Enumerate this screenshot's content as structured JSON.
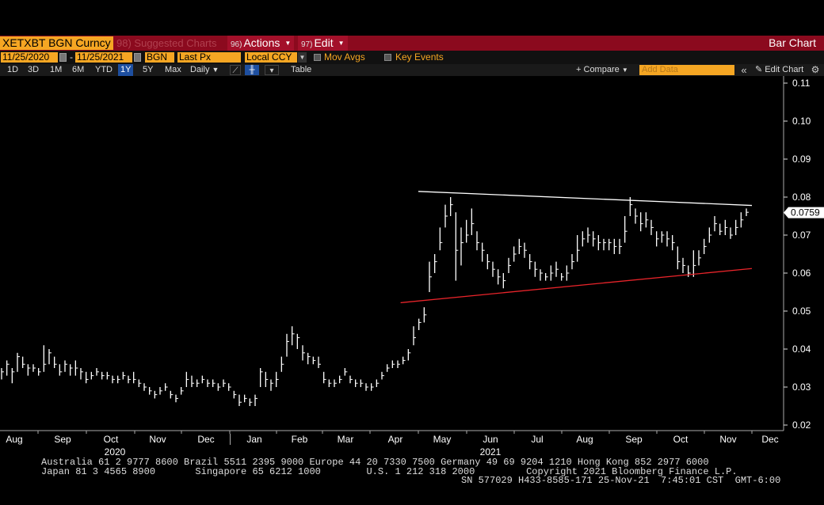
{
  "header": {
    "ticker": "XETXBT BGN Curncy",
    "suggested_num": "98)",
    "suggested": "Suggested Charts",
    "actions_num": "96)",
    "actions": "Actions",
    "edit_num": "97)",
    "edit": "Edit",
    "title": "Bar Chart"
  },
  "controls": {
    "start_date": "11/25/2020",
    "end_date": "11/25/2021",
    "dash": "-",
    "source": "BGN",
    "field": "Last Px",
    "currency": "Local CCY",
    "mov_avgs": "Mov Avgs",
    "key_events": "Key Events"
  },
  "toolbar": {
    "periods": [
      "1D",
      "3D",
      "1M",
      "6M",
      "YTD",
      "1Y",
      "5Y",
      "Max"
    ],
    "active_period": "1Y",
    "frequency": "Daily",
    "table": "Table",
    "compare": "Compare",
    "add_data_placeholder": "Add Data",
    "edit_chart": "Edit Chart"
  },
  "chart_data": {
    "type": "bar",
    "ylim": [
      0.02,
      0.11
    ],
    "yticks": [
      "0.11",
      "0.10",
      "0.09",
      "0.08",
      "0.07",
      "0.06",
      "0.05",
      "0.04",
      "0.03",
      "0.02"
    ],
    "last_price": "0.0759",
    "months": [
      "Aug",
      "Sep",
      "Oct",
      "Nov",
      "Dec",
      "Jan",
      "Feb",
      "Mar",
      "Apr",
      "May",
      "Jun",
      "Jul",
      "Aug",
      "Sep",
      "Oct",
      "Nov",
      "Dec"
    ],
    "years": [
      "2020",
      "2021"
    ],
    "series": [
      {
        "points": [
          [
            0.034,
            0.032,
            0.035
          ],
          [
            0.036,
            0.033,
            0.037
          ],
          [
            0.034,
            0.031,
            0.035
          ],
          [
            0.038,
            0.034,
            0.039
          ],
          [
            0.036,
            0.035,
            0.038
          ],
          [
            0.035,
            0.033,
            0.036
          ],
          [
            0.035,
            0.034,
            0.036
          ],
          [
            0.034,
            0.033,
            0.035
          ],
          [
            0.036,
            0.034,
            0.041
          ],
          [
            0.039,
            0.036,
            0.04
          ],
          [
            0.036,
            0.035,
            0.038
          ],
          [
            0.034,
            0.033,
            0.036
          ],
          [
            0.036,
            0.034,
            0.037
          ],
          [
            0.035,
            0.033,
            0.036
          ],
          [
            0.035,
            0.033,
            0.037
          ],
          [
            0.034,
            0.032,
            0.035
          ],
          [
            0.032,
            0.031,
            0.034
          ],
          [
            0.033,
            0.032,
            0.034
          ],
          [
            0.034,
            0.033,
            0.035
          ],
          [
            0.033,
            0.032,
            0.034
          ],
          [
            0.033,
            0.032,
            0.034
          ],
          [
            0.032,
            0.031,
            0.033
          ],
          [
            0.032,
            0.031,
            0.033
          ],
          [
            0.033,
            0.032,
            0.034
          ],
          [
            0.032,
            0.031,
            0.033
          ],
          [
            0.032,
            0.031,
            0.034
          ],
          [
            0.031,
            0.03,
            0.032
          ],
          [
            0.03,
            0.029,
            0.031
          ],
          [
            0.029,
            0.028,
            0.03
          ],
          [
            0.028,
            0.027,
            0.029
          ],
          [
            0.029,
            0.028,
            0.03
          ],
          [
            0.03,
            0.029,
            0.031
          ],
          [
            0.028,
            0.027,
            0.029
          ],
          [
            0.027,
            0.026,
            0.028
          ],
          [
            0.029,
            0.028,
            0.03
          ],
          [
            0.032,
            0.03,
            0.034
          ],
          [
            0.031,
            0.03,
            0.033
          ],
          [
            0.031,
            0.03,
            0.032
          ],
          [
            0.032,
            0.031,
            0.033
          ],
          [
            0.031,
            0.03,
            0.032
          ],
          [
            0.031,
            0.03,
            0.032
          ],
          [
            0.03,
            0.029,
            0.031
          ],
          [
            0.031,
            0.03,
            0.032
          ],
          [
            0.03,
            0.029,
            0.031
          ],
          [
            0.028,
            0.027,
            0.029
          ],
          [
            0.026,
            0.025,
            0.028
          ],
          [
            0.027,
            0.026,
            0.028
          ],
          [
            0.026,
            0.025,
            0.027
          ],
          [
            0.027,
            0.025,
            0.028
          ],
          [
            0.034,
            0.03,
            0.035
          ],
          [
            0.032,
            0.03,
            0.034
          ],
          [
            0.031,
            0.029,
            0.032
          ],
          [
            0.032,
            0.03,
            0.034
          ],
          [
            0.036,
            0.034,
            0.038
          ],
          [
            0.042,
            0.038,
            0.044
          ],
          [
            0.044,
            0.041,
            0.046
          ],
          [
            0.043,
            0.04,
            0.044
          ],
          [
            0.039,
            0.037,
            0.041
          ],
          [
            0.038,
            0.036,
            0.039
          ],
          [
            0.037,
            0.036,
            0.038
          ],
          [
            0.036,
            0.035,
            0.038
          ],
          [
            0.032,
            0.031,
            0.034
          ],
          [
            0.031,
            0.03,
            0.032
          ],
          [
            0.031,
            0.03,
            0.032
          ],
          [
            0.032,
            0.031,
            0.033
          ],
          [
            0.034,
            0.033,
            0.035
          ],
          [
            0.032,
            0.031,
            0.033
          ],
          [
            0.031,
            0.03,
            0.032
          ],
          [
            0.031,
            0.03,
            0.032
          ],
          [
            0.03,
            0.029,
            0.031
          ],
          [
            0.03,
            0.029,
            0.031
          ],
          [
            0.031,
            0.03,
            0.032
          ],
          [
            0.033,
            0.032,
            0.034
          ],
          [
            0.035,
            0.034,
            0.036
          ],
          [
            0.036,
            0.035,
            0.037
          ],
          [
            0.036,
            0.035,
            0.037
          ],
          [
            0.037,
            0.036,
            0.038
          ],
          [
            0.039,
            0.037,
            0.04
          ],
          [
            0.043,
            0.041,
            0.046
          ],
          [
            0.047,
            0.045,
            0.048
          ],
          [
            0.049,
            0.047,
            0.051
          ],
          [
            0.059,
            0.055,
            0.063
          ],
          [
            0.063,
            0.06,
            0.065
          ],
          [
            0.068,
            0.066,
            0.072
          ],
          [
            0.075,
            0.072,
            0.078
          ],
          [
            0.078,
            0.075,
            0.08
          ],
          [
            0.066,
            0.058,
            0.076
          ],
          [
            0.068,
            0.062,
            0.072
          ],
          [
            0.07,
            0.068,
            0.074
          ],
          [
            0.073,
            0.07,
            0.077
          ],
          [
            0.068,
            0.066,
            0.071
          ],
          [
            0.066,
            0.063,
            0.068
          ],
          [
            0.063,
            0.061,
            0.065
          ],
          [
            0.061,
            0.059,
            0.063
          ],
          [
            0.059,
            0.057,
            0.061
          ],
          [
            0.058,
            0.056,
            0.06
          ],
          [
            0.062,
            0.06,
            0.064
          ],
          [
            0.065,
            0.063,
            0.067
          ],
          [
            0.067,
            0.065,
            0.069
          ],
          [
            0.066,
            0.064,
            0.068
          ],
          [
            0.063,
            0.061,
            0.065
          ],
          [
            0.061,
            0.059,
            0.063
          ],
          [
            0.06,
            0.058,
            0.061
          ],
          [
            0.059,
            0.058,
            0.06
          ],
          [
            0.06,
            0.058,
            0.062
          ],
          [
            0.061,
            0.059,
            0.063
          ],
          [
            0.059,
            0.058,
            0.06
          ],
          [
            0.06,
            0.058,
            0.062
          ],
          [
            0.063,
            0.061,
            0.065
          ],
          [
            0.066,
            0.063,
            0.07
          ],
          [
            0.069,
            0.067,
            0.071
          ],
          [
            0.07,
            0.068,
            0.072
          ],
          [
            0.069,
            0.067,
            0.071
          ],
          [
            0.068,
            0.066,
            0.07
          ],
          [
            0.068,
            0.066,
            0.069
          ],
          [
            0.068,
            0.066,
            0.069
          ],
          [
            0.067,
            0.065,
            0.069
          ],
          [
            0.067,
            0.065,
            0.069
          ],
          [
            0.071,
            0.068,
            0.075
          ],
          [
            0.078,
            0.075,
            0.08
          ],
          [
            0.075,
            0.073,
            0.077
          ],
          [
            0.073,
            0.071,
            0.076
          ],
          [
            0.074,
            0.072,
            0.076
          ],
          [
            0.072,
            0.07,
            0.074
          ],
          [
            0.069,
            0.067,
            0.071
          ],
          [
            0.07,
            0.068,
            0.071
          ],
          [
            0.069,
            0.067,
            0.071
          ],
          [
            0.068,
            0.066,
            0.07
          ],
          [
            0.063,
            0.061,
            0.067
          ],
          [
            0.062,
            0.06,
            0.064
          ],
          [
            0.06,
            0.059,
            0.062
          ],
          [
            0.062,
            0.059,
            0.066
          ],
          [
            0.064,
            0.062,
            0.066
          ],
          [
            0.067,
            0.065,
            0.069
          ],
          [
            0.07,
            0.068,
            0.072
          ],
          [
            0.073,
            0.071,
            0.075
          ],
          [
            0.071,
            0.07,
            0.073
          ],
          [
            0.072,
            0.07,
            0.074
          ],
          [
            0.07,
            0.069,
            0.072
          ],
          [
            0.072,
            0.07,
            0.074
          ],
          [
            0.074,
            0.072,
            0.076
          ],
          [
            0.076,
            0.075,
            0.077
          ]
        ]
      }
    ],
    "trendlines": [
      {
        "color": "#ffffff",
        "from": [
          "2021-05-01",
          0.0815
        ],
        "to": [
          "2021-12-01",
          0.0778
        ]
      },
      {
        "color": "#e8242a",
        "from": [
          "2021-04-20",
          0.0522
        ],
        "to": [
          "2021-12-01",
          0.0612
        ]
      }
    ]
  },
  "footer": {
    "line1": "Australia 61 2 9777 8600 Brazil 5511 2395 9000 Europe 44 20 7330 7500 Germany 49 69 9204 1210 Hong Kong 852 2977 6000",
    "line2": "Japan 81 3 4565 8900       Singapore 65 6212 1000        U.S. 1 212 318 2000         Copyright 2021 Bloomberg Finance L.P.",
    "line3": "SN 577029 H433-8585-171 25-Nov-21  7:45:01 CST  GMT-6:00"
  }
}
